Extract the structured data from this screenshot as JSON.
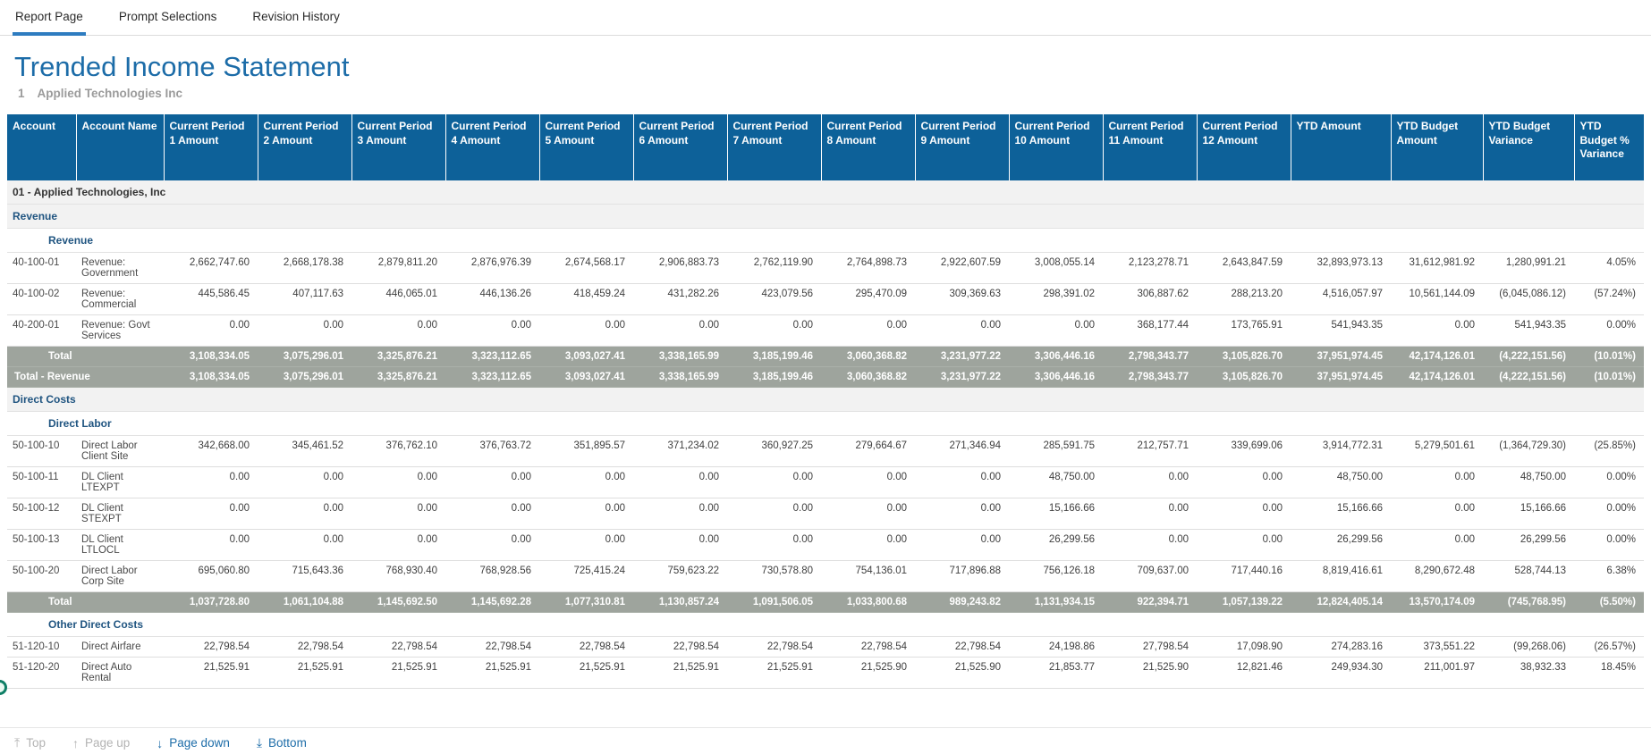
{
  "tabs": [
    {
      "label": "Report Page",
      "active": true
    },
    {
      "label": "Prompt Selections",
      "active": false
    },
    {
      "label": "Revision History",
      "active": false
    }
  ],
  "report": {
    "title": "Trended Income Statement",
    "subtitle_number": "1",
    "subtitle_company": "Applied Technologies Inc"
  },
  "colors": {
    "header_blue": "#0d6199",
    "title_blue": "#1c6ca8",
    "section_blue": "#1f5480",
    "total_gray": "#9ea49d",
    "active_tab_underline": "#2e7cc0",
    "link_blue": "#1c6ca8",
    "edge_dot_green": "#0e7f66"
  },
  "table": {
    "columns": [
      "Account",
      "Account Name",
      "Current Period 1 Amount",
      "Current Period 2 Amount",
      "Current Period 3 Amount",
      "Current Period 4 Amount",
      "Current Period 5 Amount",
      "Current Period 6 Amount",
      "Current Period 7 Amount",
      "Current Period 8 Amount",
      "Current Period 9 Amount",
      "Current Period 10 Amount",
      "Current Period 11 Amount",
      "Current Period 12 Amount",
      "YTD Amount",
      "YTD Budget Amount",
      "YTD Budget Variance",
      "YTD Budget % Variance"
    ],
    "rows": [
      {
        "type": "group",
        "label": "01  - Applied Technologies, Inc"
      },
      {
        "type": "section",
        "label": "Revenue",
        "indent": 0
      },
      {
        "type": "section",
        "label": "Revenue",
        "indent": 1
      },
      {
        "type": "data",
        "account": "40-100-01",
        "name": "Revenue: Government",
        "values": [
          "2,662,747.60",
          "2,668,178.38",
          "2,879,811.20",
          "2,876,976.39",
          "2,674,568.17",
          "2,906,883.73",
          "2,762,119.90",
          "2,764,898.73",
          "2,922,607.59",
          "3,008,055.14",
          "2,123,278.71",
          "2,643,847.59",
          "32,893,973.13",
          "31,612,981.92",
          "1,280,991.21",
          "4.05%"
        ]
      },
      {
        "type": "data",
        "account": "40-100-02",
        "name": "Revenue: Commercial",
        "values": [
          "445,586.45",
          "407,117.63",
          "446,065.01",
          "446,136.26",
          "418,459.24",
          "431,282.26",
          "423,079.56",
          "295,470.09",
          "309,369.63",
          "298,391.02",
          "306,887.62",
          "288,213.20",
          "4,516,057.97",
          "10,561,144.09",
          "(6,045,086.12)",
          "(57.24%)"
        ]
      },
      {
        "type": "data",
        "account": "40-200-01",
        "name": "Revenue: Govt Services",
        "values": [
          "0.00",
          "0.00",
          "0.00",
          "0.00",
          "0.00",
          "0.00",
          "0.00",
          "0.00",
          "0.00",
          "0.00",
          "368,177.44",
          "173,765.91",
          "541,943.35",
          "0.00",
          "541,943.35",
          "0.00%"
        ]
      },
      {
        "type": "total",
        "label": "Total",
        "indent": 1,
        "values": [
          "3,108,334.05",
          "3,075,296.01",
          "3,325,876.21",
          "3,323,112.65",
          "3,093,027.41",
          "3,338,165.99",
          "3,185,199.46",
          "3,060,368.82",
          "3,231,977.22",
          "3,306,446.16",
          "2,798,343.77",
          "3,105,826.70",
          "37,951,974.45",
          "42,174,126.01",
          "(4,222,151.56)",
          "(10.01%)"
        ]
      },
      {
        "type": "total",
        "label": "Total - Revenue",
        "indent": 0,
        "values": [
          "3,108,334.05",
          "3,075,296.01",
          "3,325,876.21",
          "3,323,112.65",
          "3,093,027.41",
          "3,338,165.99",
          "3,185,199.46",
          "3,060,368.82",
          "3,231,977.22",
          "3,306,446.16",
          "2,798,343.77",
          "3,105,826.70",
          "37,951,974.45",
          "42,174,126.01",
          "(4,222,151.56)",
          "(10.01%)"
        ]
      },
      {
        "type": "section",
        "label": "Direct Costs",
        "indent": 0
      },
      {
        "type": "section",
        "label": "Direct Labor",
        "indent": 1
      },
      {
        "type": "data",
        "account": "50-100-10",
        "name": "Direct Labor Client Site",
        "values": [
          "342,668.00",
          "345,461.52",
          "376,762.10",
          "376,763.72",
          "351,895.57",
          "371,234.02",
          "360,927.25",
          "279,664.67",
          "271,346.94",
          "285,591.75",
          "212,757.71",
          "339,699.06",
          "3,914,772.31",
          "5,279,501.61",
          "(1,364,729.30)",
          "(25.85%)"
        ]
      },
      {
        "type": "data",
        "account": "50-100-11",
        "name": "DL Client LTEXPT",
        "values": [
          "0.00",
          "0.00",
          "0.00",
          "0.00",
          "0.00",
          "0.00",
          "0.00",
          "0.00",
          "0.00",
          "48,750.00",
          "0.00",
          "0.00",
          "48,750.00",
          "0.00",
          "48,750.00",
          "0.00%"
        ]
      },
      {
        "type": "data",
        "account": "50-100-12",
        "name": "DL Client STEXPT",
        "values": [
          "0.00",
          "0.00",
          "0.00",
          "0.00",
          "0.00",
          "0.00",
          "0.00",
          "0.00",
          "0.00",
          "15,166.66",
          "0.00",
          "0.00",
          "15,166.66",
          "0.00",
          "15,166.66",
          "0.00%"
        ]
      },
      {
        "type": "data",
        "account": "50-100-13",
        "name": "DL Client LTLOCL",
        "values": [
          "0.00",
          "0.00",
          "0.00",
          "0.00",
          "0.00",
          "0.00",
          "0.00",
          "0.00",
          "0.00",
          "26,299.56",
          "0.00",
          "0.00",
          "26,299.56",
          "0.00",
          "26,299.56",
          "0.00%"
        ]
      },
      {
        "type": "data",
        "account": "50-100-20",
        "name": "Direct Labor Corp Site",
        "values": [
          "695,060.80",
          "715,643.36",
          "768,930.40",
          "768,928.56",
          "725,415.24",
          "759,623.22",
          "730,578.80",
          "754,136.01",
          "717,896.88",
          "756,126.18",
          "709,637.00",
          "717,440.16",
          "8,819,416.61",
          "8,290,672.48",
          "528,744.13",
          "6.38%"
        ]
      },
      {
        "type": "total",
        "label": "Total",
        "indent": 1,
        "values": [
          "1,037,728.80",
          "1,061,104.88",
          "1,145,692.50",
          "1,145,692.28",
          "1,077,310.81",
          "1,130,857.24",
          "1,091,506.05",
          "1,033,800.68",
          "989,243.82",
          "1,131,934.15",
          "922,394.71",
          "1,057,139.22",
          "12,824,405.14",
          "13,570,174.09",
          "(745,768.95)",
          "(5.50%)"
        ]
      },
      {
        "type": "section",
        "label": "Other Direct Costs",
        "indent": 1
      },
      {
        "type": "data",
        "account": "51-120-10",
        "name": "Direct Airfare",
        "values": [
          "22,798.54",
          "22,798.54",
          "22,798.54",
          "22,798.54",
          "22,798.54",
          "22,798.54",
          "22,798.54",
          "22,798.54",
          "22,798.54",
          "24,198.86",
          "27,798.54",
          "17,098.90",
          "274,283.16",
          "373,551.22",
          "(99,268.06)",
          "(26.57%)"
        ]
      },
      {
        "type": "data",
        "account": "51-120-20",
        "name": "Direct Auto Rental",
        "values": [
          "21,525.91",
          "21,525.91",
          "21,525.91",
          "21,525.91",
          "21,525.91",
          "21,525.91",
          "21,525.91",
          "21,525.90",
          "21,525.90",
          "21,853.77",
          "21,525.90",
          "12,821.46",
          "249,934.30",
          "211,001.97",
          "38,932.33",
          "18.45%"
        ]
      }
    ]
  },
  "pager": {
    "items": [
      {
        "label": "Top",
        "icon": "⤒",
        "enabled": false
      },
      {
        "label": "Page up",
        "icon": "↑",
        "enabled": false
      },
      {
        "label": "Page down",
        "icon": "↓",
        "enabled": true
      },
      {
        "label": "Bottom",
        "icon": "⤓",
        "enabled": true
      }
    ]
  }
}
